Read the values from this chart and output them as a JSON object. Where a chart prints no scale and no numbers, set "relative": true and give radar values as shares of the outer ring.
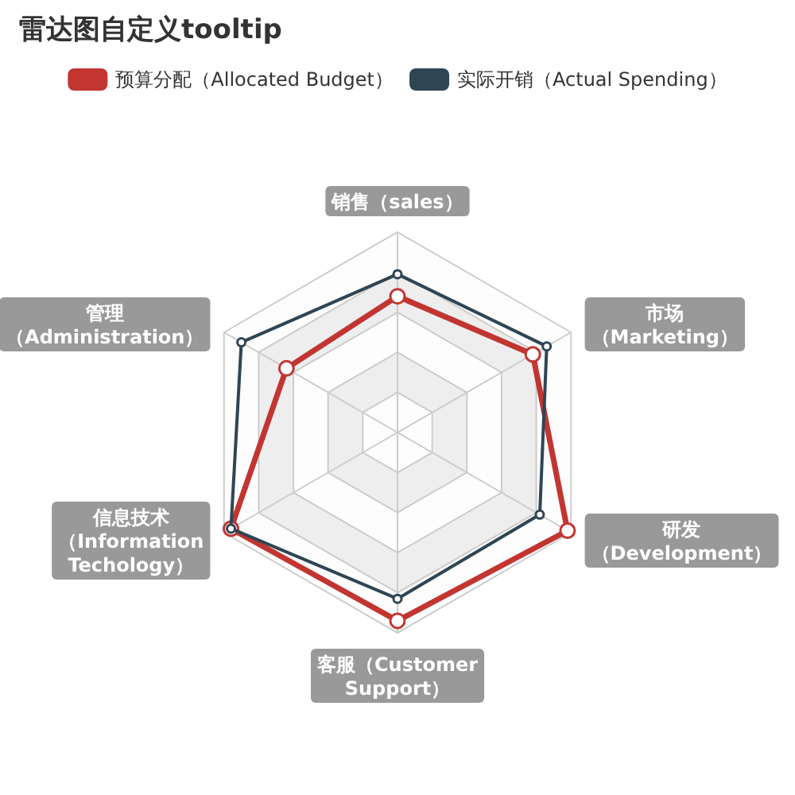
{
  "chart_data": {
    "type": "radar",
    "title": "雷达图自定义tooltip",
    "categories": [
      "销售（sales）",
      "市场（Marketing）",
      "研发（Development）",
      "客服（Customer Support）",
      "信息技术（Information Techology）",
      "管理（Administration）"
    ],
    "relative": true,
    "legend": "top",
    "marker": "circle",
    "line_style": "solid",
    "series": [
      {
        "name": "预算分配（Allocated Budget）",
        "color": "#c23531",
        "values": [
          0.68,
          0.78,
          0.98,
          0.94,
          0.96,
          0.64
        ]
      },
      {
        "name": "实际开销（Actual Spending）",
        "color": "#2f4554",
        "values": [
          0.79,
          0.86,
          0.82,
          0.83,
          0.96,
          0.9
        ]
      }
    ]
  }
}
